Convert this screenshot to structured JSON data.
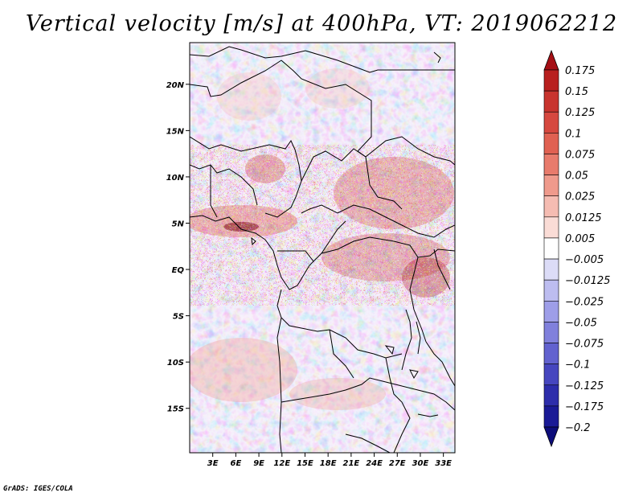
{
  "title": "Vertical velocity [m/s] at 400hPa, VT: 2019062212",
  "credit": "GrADS: IGES/COLA",
  "map": {
    "lat_labels": [
      "20N",
      "15N",
      "10N",
      "5N",
      "EQ",
      "5S",
      "10S",
      "15S"
    ],
    "lon_labels": [
      "3E",
      "6E",
      "9E",
      "12E",
      "15E",
      "18E",
      "21E",
      "24E",
      "27E",
      "30E",
      "33E"
    ],
    "lat_values": [
      20,
      15,
      10,
      5,
      0,
      -5,
      -10,
      -15
    ],
    "lon_values": [
      3,
      6,
      9,
      12,
      15,
      18,
      21,
      24,
      27,
      30,
      33
    ],
    "lon_range": [
      0,
      34.5
    ],
    "lat_range": [
      -19.8,
      24.5
    ]
  },
  "colorbar": {
    "labels": [
      "0.175",
      "0.15",
      "0.125",
      "0.1",
      "0.075",
      "0.05",
      "0.025",
      "0.0125",
      "0.005",
      "-0.005",
      "-0.0125",
      "-0.025",
      "-0.05",
      "-0.075",
      "-0.1",
      "-0.125",
      "-0.175",
      "-0.2"
    ],
    "colors": [
      "#a50f15",
      "#b8201f",
      "#c8342e",
      "#d6483f",
      "#e06152",
      "#e87b6c",
      "#ef9a8c",
      "#f5bcb2",
      "#fadcd6",
      "#ffffff",
      "#dcdcf7",
      "#bdbdf0",
      "#9e9ee8",
      "#8080dc",
      "#6262cf",
      "#4646bf",
      "#2d2dab",
      "#1a1a96",
      "#0d0d7a"
    ]
  }
}
